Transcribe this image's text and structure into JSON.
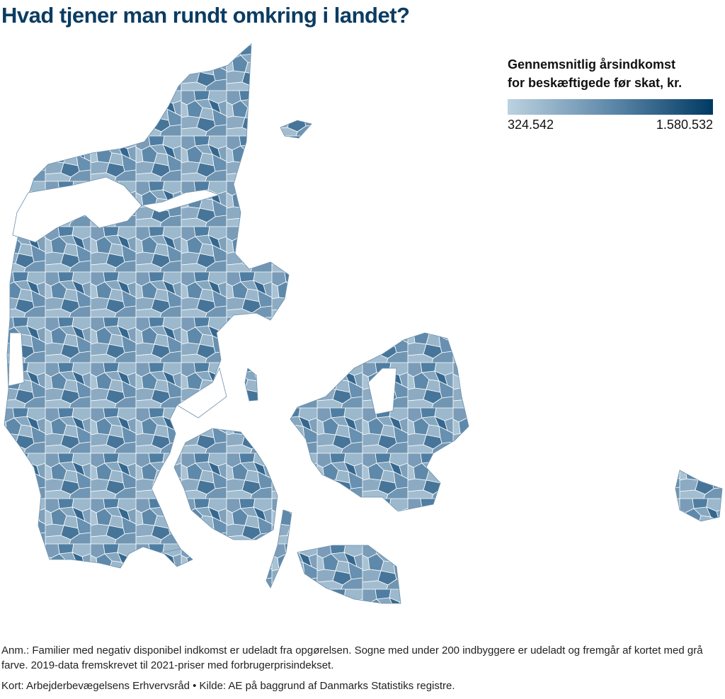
{
  "header": {
    "title": "Hvad tjener man rundt omkring i landet?"
  },
  "legend": {
    "title": [
      "Gennemsnitlig årsindkomst",
      "for beskæftigede før skat, kr."
    ],
    "min": {
      "value": 324542,
      "label": "324.542"
    },
    "max": {
      "value": 1580532,
      "label": "1.580.532"
    }
  },
  "notes": [
    "Anm.: Familier med negativ disponibel indkomst er udeladt fra opgørelsen. Sogne med under 200 indbyggere er udeladt og fremgår af kortet med grå farve. 2019-data fremskrevet til 2021-priser med forbrugerprisindekset.",
    "Kort: Arbejderbevægelsens Erhvervsråd • Kilde: AE på baggrund af Danmarks Statistiks registre."
  ]
}
